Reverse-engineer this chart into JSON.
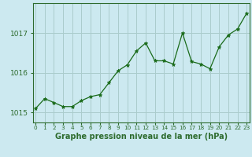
{
  "x": [
    0,
    1,
    2,
    3,
    4,
    5,
    6,
    7,
    8,
    9,
    10,
    11,
    12,
    13,
    14,
    15,
    16,
    17,
    18,
    19,
    20,
    21,
    22,
    23
  ],
  "y": [
    1015.1,
    1015.35,
    1015.25,
    1015.15,
    1015.15,
    1015.3,
    1015.4,
    1015.45,
    1015.75,
    1016.05,
    1016.2,
    1016.55,
    1016.75,
    1016.3,
    1016.3,
    1016.22,
    1017.0,
    1016.28,
    1016.22,
    1016.1,
    1016.65,
    1016.95,
    1017.1,
    1017.5
  ],
  "line_color": "#1a6b1a",
  "marker": "*",
  "marker_color": "#1a6b1a",
  "bg_color": "#cce9f0",
  "grid_color": "#aacccc",
  "title": "Graphe pression niveau de la mer (hPa)",
  "ylabel_ticks": [
    1015,
    1016,
    1017
  ],
  "ylim": [
    1014.75,
    1017.75
  ],
  "xlim": [
    -0.3,
    23.3
  ],
  "spine_color": "#2d6b2d",
  "tick_color": "#2d6b2d",
  "title_fontsize": 7,
  "ytick_fontsize": 6.5,
  "xtick_fontsize": 5.2
}
